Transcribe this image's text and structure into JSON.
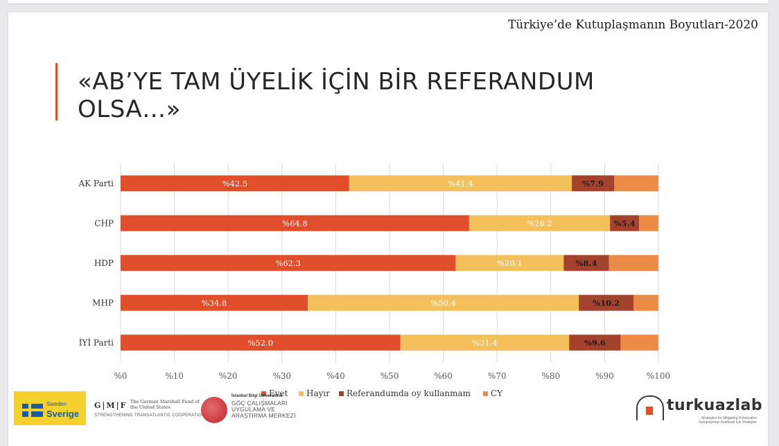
{
  "header": {
    "report_title": "Türkiye’de Kutuplaşmanın Boyutları-2020"
  },
  "slide": {
    "title": "«AB’YE TAM ÜYELİK İÇİN BİR REFERANDUM OLSA…»"
  },
  "colors": {
    "evet": "#e04e2c",
    "hayir": "#f3c05b",
    "referandumda_oy_kullanmam": "#a4422d",
    "cy": "#ec8b45",
    "accent": "#e04e2c",
    "grid": "#d9d9d9",
    "axis_text": "#595959"
  },
  "chart_data": {
    "type": "bar",
    "orientation": "horizontal",
    "stacked": "100%",
    "title": "",
    "categories": [
      "AK Parti",
      "CHP",
      "HDP",
      "MHP",
      "İYİ Parti"
    ],
    "series": [
      {
        "name": "Evet",
        "values": [
          42.5,
          64.8,
          62.3,
          34.8,
          52.0
        ],
        "labels": [
          "%42.5",
          "%64.8",
          "%62.3",
          "%34.8",
          "%52.0"
        ]
      },
      {
        "name": "Hayır",
        "values": [
          41.4,
          26.2,
          20.1,
          50.4,
          31.4
        ],
        "labels": [
          "%41.4",
          "%26.2",
          "%20.1",
          "%50.4",
          "%31.4"
        ]
      },
      {
        "name": "Referandumda oy kullanmam",
        "values": [
          7.9,
          5.4,
          8.4,
          10.2,
          9.6
        ],
        "labels": [
          "%7.9",
          "%5.4",
          "%8.4",
          "%10.2",
          "%9.6"
        ]
      },
      {
        "name": "CY",
        "values": [
          8.2,
          3.6,
          9.2,
          4.6,
          7.0
        ],
        "labels": [
          "",
          "",
          "",
          "",
          ""
        ]
      }
    ],
    "xlim": [
      0,
      100
    ],
    "xticks": [
      "%0",
      "%10",
      "%20",
      "%30",
      "%40",
      "%50",
      "%60",
      "%70",
      "%80",
      "%90",
      "%100"
    ],
    "grid": "vertical",
    "legend_position": "bottom"
  },
  "footer": {
    "sweden_small": "Sweden",
    "sweden_big": "Sverige",
    "gmf_mark": "G|M|F",
    "gmf_name": "The German Marshall Fund of the United States",
    "gmf_tag": "STRENGTHENING TRANSATLANTIC COOPERATION",
    "bilgi_uni": "İstanbul Bilgi Üniversitesi",
    "bilgi_center": "GÖÇ ÇALIŞMALARI UYGULAMA VE ARAŞTIRMA MERKEZİ",
    "turkuaz_name": "turkuazlab",
    "turkuaz_tag": "Strategies for Mitigating Polarization Kutuplaşmayı Azaltmak İçin Stratejiler"
  }
}
